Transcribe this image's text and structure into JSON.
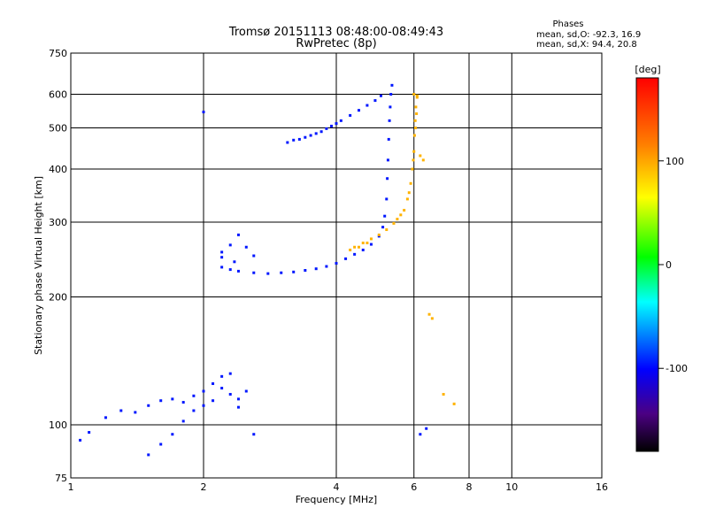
{
  "colors": {
    "background": "#ffffff",
    "axis": "#000000",
    "grid": "#000000"
  },
  "chart_data": {
    "type": "scatter",
    "title": "Tromsø 20151113 08:48:00-08:49:43",
    "subtitle": "RwPretec (8p)",
    "xlabel": "Frequency [MHz]",
    "ylabel": "Stationary phase Virtual Height [km]",
    "x_scale": "log",
    "y_scale": "log",
    "xlim": [
      1,
      16
    ],
    "ylim": [
      75,
      750
    ],
    "x_ticks": [
      1,
      2,
      4,
      6,
      8,
      10,
      16
    ],
    "x_tick_labels": [
      "1",
      "2",
      "4",
      "6",
      "8",
      "10",
      "16"
    ],
    "y_ticks": [
      75,
      100,
      200,
      300,
      400,
      500,
      600,
      750
    ],
    "y_tick_labels": [
      "75",
      "100",
      "200",
      "300",
      "400",
      "500",
      "600",
      "750"
    ],
    "grid": true,
    "stats": {
      "heading": "Phases",
      "line_o": "mean, sd,O: -92.3, 16.9",
      "line_x": "mean, sd,X:  94.4, 20.8"
    },
    "colorbar": {
      "label": "[deg]",
      "range": [
        -180,
        180
      ],
      "ticks": [
        100,
        0,
        -100
      ],
      "tick_labels": [
        "100",
        "0",
        "-100"
      ],
      "colormap": "rainbow"
    },
    "series": [
      {
        "mode": "O",
        "phase_deg": -95,
        "color_hint": "blue",
        "points": [
          [
            2.2,
            235
          ],
          [
            2.3,
            232
          ],
          [
            2.4,
            230
          ],
          [
            2.6,
            228
          ],
          [
            2.8,
            227
          ],
          [
            3.0,
            228
          ],
          [
            3.2,
            229
          ],
          [
            3.4,
            231
          ],
          [
            3.6,
            233
          ],
          [
            3.8,
            236
          ],
          [
            4.0,
            240
          ],
          [
            4.2,
            246
          ],
          [
            4.4,
            252
          ],
          [
            4.6,
            258
          ],
          [
            4.8,
            266
          ],
          [
            5.0,
            278
          ],
          [
            5.1,
            292
          ],
          [
            5.15,
            310
          ],
          [
            5.2,
            340
          ],
          [
            5.22,
            380
          ],
          [
            5.24,
            420
          ],
          [
            5.26,
            470
          ],
          [
            5.28,
            520
          ],
          [
            5.3,
            560
          ],
          [
            5.32,
            600
          ],
          [
            5.35,
            630
          ],
          [
            2.2,
            255
          ],
          [
            2.3,
            265
          ],
          [
            2.4,
            280
          ],
          [
            2.5,
            262
          ],
          [
            2.6,
            250
          ],
          [
            2.2,
            248
          ],
          [
            2.35,
            242
          ],
          [
            3.3,
            470
          ],
          [
            3.5,
            480
          ],
          [
            3.7,
            490
          ],
          [
            3.9,
            505
          ],
          [
            4.1,
            520
          ],
          [
            4.3,
            535
          ],
          [
            4.5,
            550
          ],
          [
            4.7,
            565
          ],
          [
            4.9,
            580
          ],
          [
            5.05,
            595
          ],
          [
            3.1,
            462
          ],
          [
            3.2,
            468
          ],
          [
            3.4,
            475
          ],
          [
            3.6,
            485
          ],
          [
            3.8,
            498
          ],
          [
            4.0,
            512
          ],
          [
            2.0,
            545
          ],
          [
            1.05,
            92
          ],
          [
            1.1,
            96
          ],
          [
            1.2,
            104
          ],
          [
            1.3,
            108
          ],
          [
            1.4,
            107
          ],
          [
            1.5,
            111
          ],
          [
            1.6,
            114
          ],
          [
            1.7,
            115
          ],
          [
            1.8,
            113
          ],
          [
            1.9,
            117
          ],
          [
            2.0,
            120
          ],
          [
            2.1,
            125
          ],
          [
            2.2,
            122
          ],
          [
            2.3,
            118
          ],
          [
            2.4,
            115
          ],
          [
            2.5,
            120
          ],
          [
            1.5,
            85
          ],
          [
            1.6,
            90
          ],
          [
            1.7,
            95
          ],
          [
            1.8,
            102
          ],
          [
            1.9,
            108
          ],
          [
            2.0,
            111
          ],
          [
            2.1,
            114
          ],
          [
            2.2,
            130
          ],
          [
            2.3,
            132
          ],
          [
            2.4,
            110
          ],
          [
            2.6,
            95
          ],
          [
            6.2,
            95
          ],
          [
            6.4,
            98
          ]
        ]
      },
      {
        "mode": "X",
        "phase_deg": 95,
        "color_hint": "yellow",
        "points": [
          [
            4.4,
            262
          ],
          [
            4.6,
            268
          ],
          [
            4.8,
            274
          ],
          [
            5.0,
            280
          ],
          [
            5.2,
            288
          ],
          [
            5.4,
            298
          ],
          [
            5.6,
            312
          ],
          [
            5.8,
            340
          ],
          [
            5.9,
            370
          ],
          [
            5.95,
            400
          ],
          [
            6.0,
            440
          ],
          [
            6.02,
            480
          ],
          [
            6.04,
            520
          ],
          [
            6.06,
            560
          ],
          [
            6.1,
            590
          ],
          [
            5.5,
            305
          ],
          [
            5.7,
            320
          ],
          [
            5.85,
            352
          ],
          [
            5.98,
            420
          ],
          [
            6.05,
            500
          ],
          [
            6.08,
            540
          ],
          [
            6.0,
            600
          ],
          [
            6.1,
            595
          ],
          [
            6.2,
            430
          ],
          [
            6.3,
            420
          ],
          [
            6.5,
            182
          ],
          [
            6.6,
            178
          ],
          [
            7.0,
            118
          ],
          [
            7.4,
            112
          ],
          [
            4.3,
            258
          ],
          [
            4.5,
            262
          ],
          [
            4.7,
            268
          ]
        ]
      }
    ]
  }
}
